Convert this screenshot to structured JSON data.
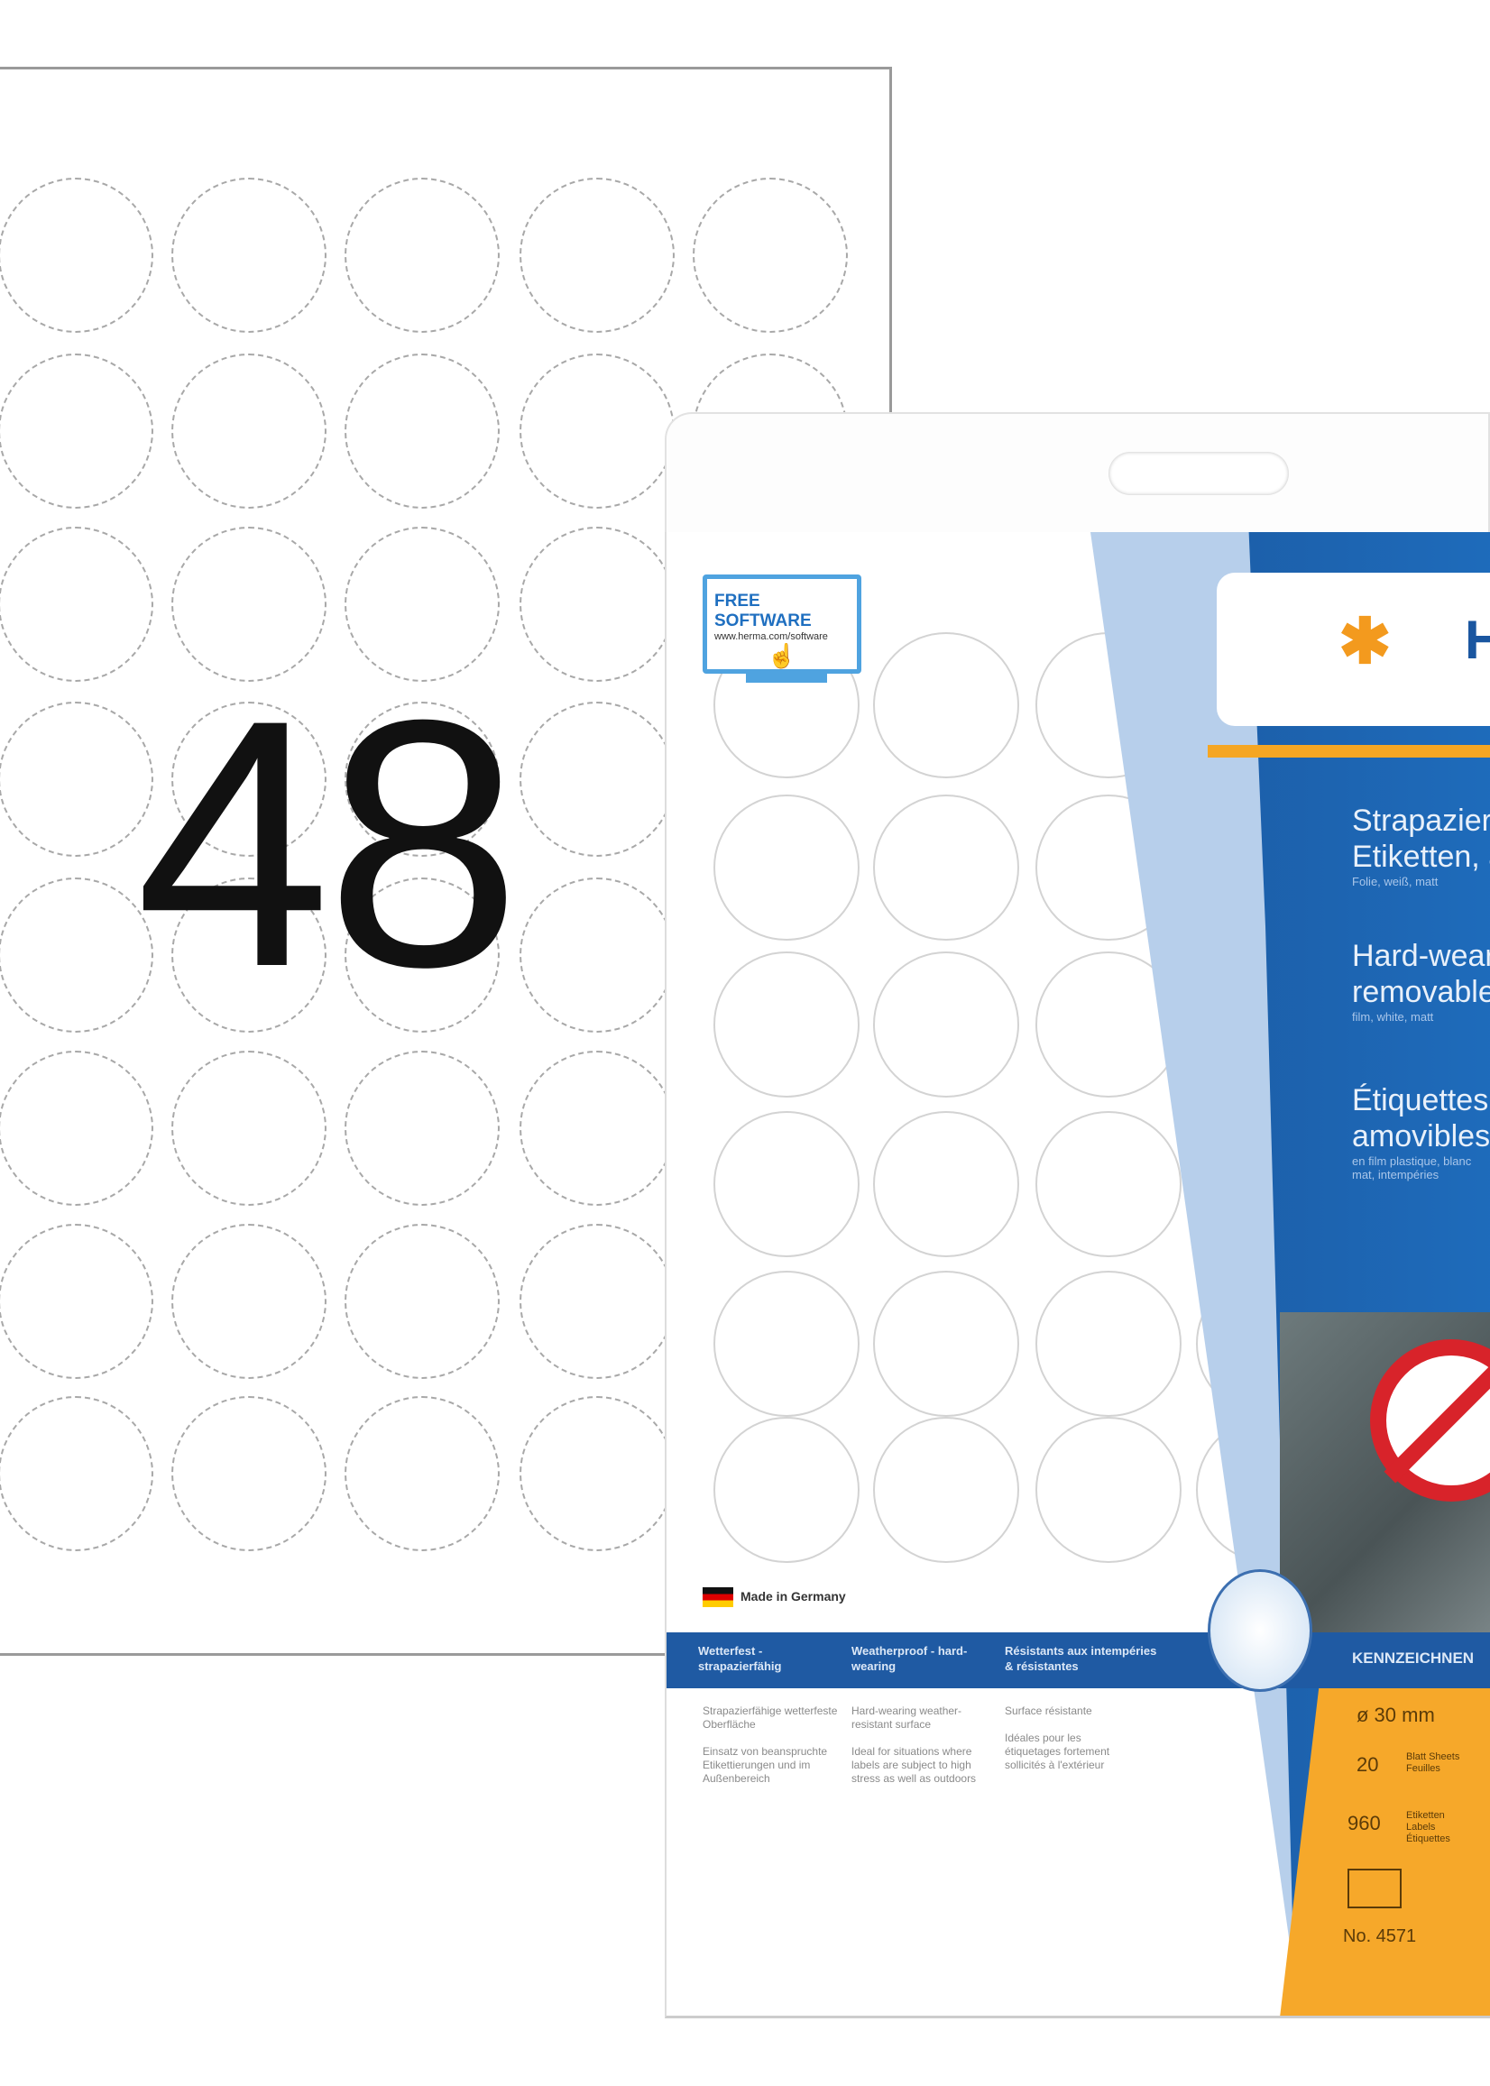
{
  "sheet": {
    "label_count": "48"
  },
  "package": {
    "free_software": {
      "title": "FREE SOFTWARE",
      "url": "www.herma.com/software"
    },
    "brand": "HERMA",
    "titles": [
      {
        "line1": "Strapazierfähige",
        "line2": "Etiketten, ablösbar",
        "sub": "Folie, weiß, matt"
      },
      {
        "line1": "Hard-wearing",
        "line2": "removable labels",
        "sub": "film, white, matt"
      },
      {
        "line1": "Étiquettes",
        "line2": "amovibles",
        "sub": "en film plastique, blanc mat, intempéries"
      }
    ],
    "made_in": "Made in Germany",
    "band_headers": [
      "Wetterfest - strapazierfähig",
      "Weatherproof - hard-wearing",
      "Résistants aux intempéries & résistantes"
    ],
    "band_right": "KENNZEICHNEN",
    "columns": [
      [
        "Strapazierfähige wetterfeste Oberfläche",
        "Einsatz von beanspruchte Etikettierungen und im Außenbereich"
      ],
      [
        "Hard-wearing weather-resistant surface",
        "Ideal for situations where labels are subject to high stress as well as outdoors"
      ],
      [
        "Surface résistante",
        "Idéales pour les étiquetages fortement sollicités à l'extérieur"
      ]
    ],
    "specs": {
      "size": "ø 30 mm",
      "sheets": "20",
      "sheets_label": "Blatt Sheets Feuilles",
      "labels": "960",
      "labels_label": "Etiketten Labels Étiquettes",
      "item_no": "No. 4571"
    },
    "colors": {
      "blue": "#1f5aa3",
      "orange": "#f6a82a",
      "light_blue": "#b7cfeb"
    }
  }
}
